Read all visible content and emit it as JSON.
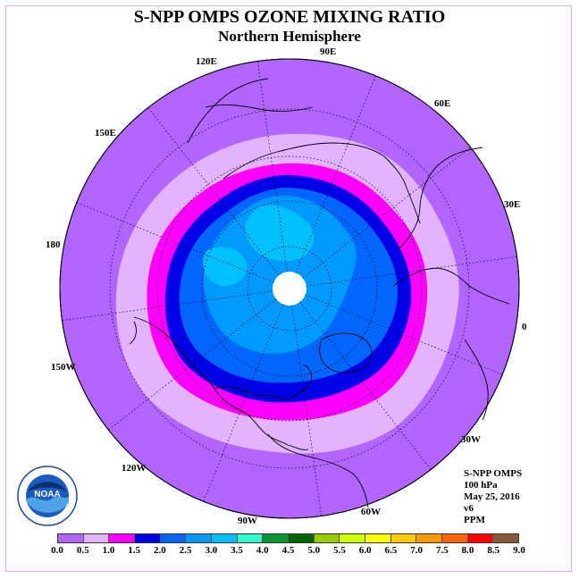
{
  "title": "S-NPP OMPS OZONE MIXING RATIO",
  "subtitle": "Northern Hemisphere",
  "longitude_labels": [
    "90E",
    "60E",
    "30E",
    "0",
    "30W",
    "60W",
    "90W",
    "120W",
    "150W",
    "180",
    "150E",
    "120E"
  ],
  "info": {
    "instrument": "S-NPP OMPS",
    "level": "100 hPa",
    "date": "May 25, 2016",
    "version": "v6",
    "units": "PPM"
  },
  "logo_text": "NOAA",
  "colorbar": {
    "labels": [
      "0.0",
      "0.5",
      "1.0",
      "1.5",
      "2.0",
      "2.5",
      "3.0",
      "3.5",
      "4.0",
      "4.5",
      "5.0",
      "5.5",
      "6.0",
      "6.5",
      "7.0",
      "7.5",
      "8.0",
      "8.5",
      "9.0"
    ],
    "colors": [
      "#b266ff",
      "#e2b3ff",
      "#ff00ff",
      "#0000e6",
      "#0066ff",
      "#0099ff",
      "#00c0ff",
      "#33ffcc",
      "#009933",
      "#006600",
      "#99cc00",
      "#ccff00",
      "#ffff00",
      "#ffcc00",
      "#ff9900",
      "#ff6600",
      "#ff0000",
      "#8b5a3c"
    ]
  },
  "map_colors": {
    "outer": "#b266ff",
    "band_05": "#e2b3ff",
    "band_10": "#ff00ff",
    "band_15": "#0000e6",
    "band_20": "#0066ff",
    "band_25": "#0099ff",
    "band_30": "#00c0ff",
    "pole": "#ffffff"
  }
}
